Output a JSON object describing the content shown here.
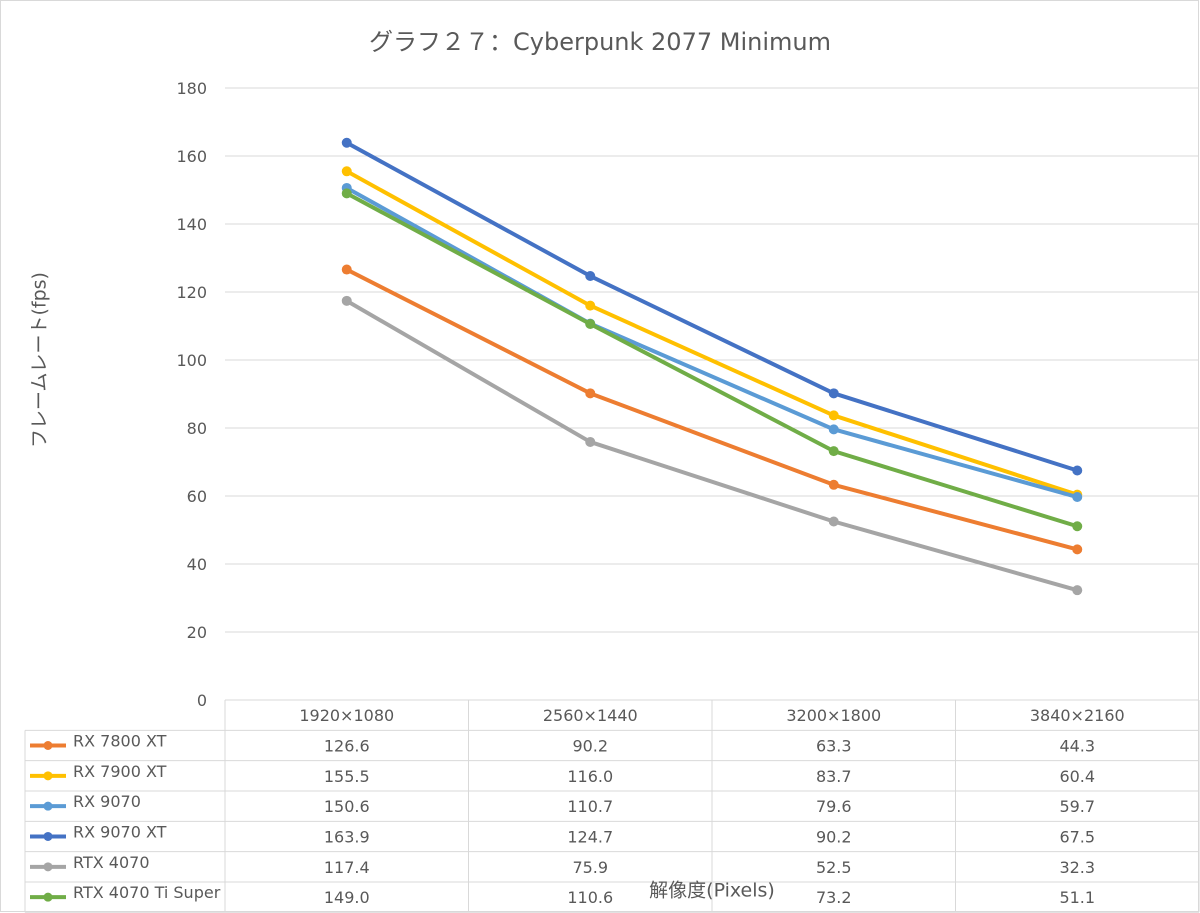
{
  "chart_data": {
    "type": "line",
    "title": "グラフ２７：Cyberpunk 2077 Minimum",
    "xlabel": "解像度(Pixels)",
    "ylabel": "フレームレート(fps)",
    "ylim": [
      0,
      180
    ],
    "yticks": [
      0,
      20,
      40,
      60,
      80,
      100,
      120,
      140,
      160,
      180
    ],
    "grid": true,
    "legend": "data-table",
    "categories": [
      "1920×1080",
      "2560×1440",
      "3200×1800",
      "3840×2160"
    ],
    "series": [
      {
        "name": "RX 7800 XT",
        "color": "#ed7d31",
        "values": [
          126.6,
          90.2,
          63.3,
          44.3
        ],
        "labels": [
          "126.6",
          "90.2",
          "63.3",
          "44.3"
        ]
      },
      {
        "name": "RX 7900 XT",
        "color": "#ffc000",
        "values": [
          155.5,
          116.0,
          83.7,
          60.4
        ],
        "labels": [
          "155.5",
          "116.0",
          "83.7",
          "60.4"
        ]
      },
      {
        "name": "RX 9070",
        "color": "#5b9bd5",
        "values": [
          150.6,
          110.7,
          79.6,
          59.7
        ],
        "labels": [
          "150.6",
          "110.7",
          "79.6",
          "59.7"
        ]
      },
      {
        "name": "RX 9070 XT",
        "color": "#4472c4",
        "values": [
          163.9,
          124.7,
          90.2,
          67.5
        ],
        "labels": [
          "163.9",
          "124.7",
          "90.2",
          "67.5"
        ]
      },
      {
        "name": "RTX 4070",
        "color": "#a5a5a5",
        "values": [
          117.4,
          75.9,
          52.5,
          32.3
        ],
        "labels": [
          "117.4",
          "75.9",
          "52.5",
          "32.3"
        ]
      },
      {
        "name": "RTX 4070 Ti Super",
        "color": "#70ad47",
        "values": [
          149.0,
          110.6,
          73.2,
          51.1
        ],
        "labels": [
          "149.0",
          "110.6",
          "73.2",
          "51.1"
        ]
      }
    ]
  }
}
